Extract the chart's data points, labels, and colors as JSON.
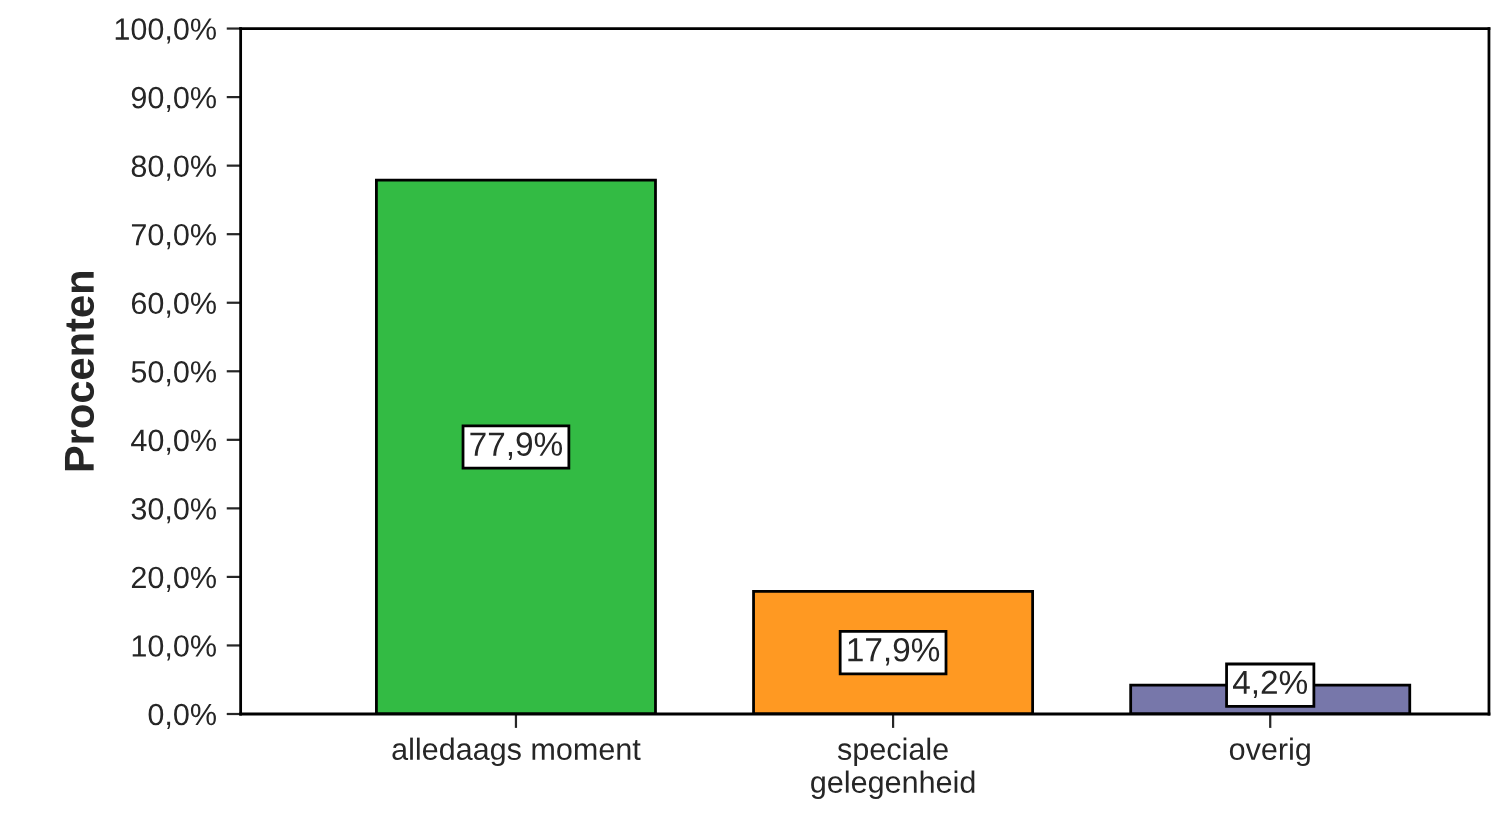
{
  "chart_data": {
    "type": "bar",
    "ylabel": "Procenten",
    "categories": [
      "alledaags moment",
      "speciale gelegenheid",
      "overig"
    ],
    "values": [
      77.9,
      17.9,
      4.2
    ],
    "colors": [
      "#33bb44",
      "#ff9922",
      "#7777aa"
    ],
    "value_labels": [
      "77,9%",
      "17,9%",
      "4,2%"
    ],
    "ylim": [
      0,
      100
    ],
    "yticks": [
      {
        "value": 0,
        "label": "0,0%"
      },
      {
        "value": 10,
        "label": "10,0%"
      },
      {
        "value": 20,
        "label": "20,0%"
      },
      {
        "value": 30,
        "label": "30,0%"
      },
      {
        "value": 40,
        "label": "40,0%"
      },
      {
        "value": 50,
        "label": "50,0%"
      },
      {
        "value": 60,
        "label": "60,0%"
      },
      {
        "value": 70,
        "label": "70,0%"
      },
      {
        "value": 80,
        "label": "80,0%"
      },
      {
        "value": 90,
        "label": "90,0%"
      },
      {
        "value": 100,
        "label": "100,0%"
      }
    ],
    "grid": false,
    "legend": false
  }
}
